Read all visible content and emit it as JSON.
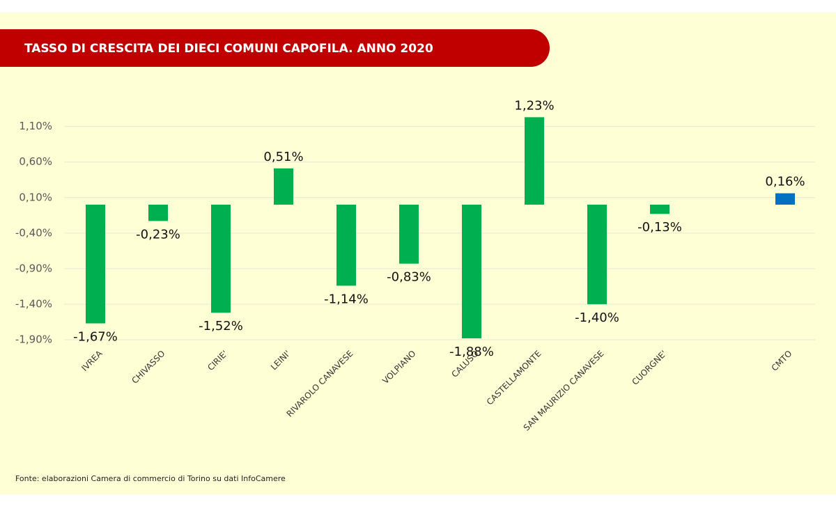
{
  "chart_data": {
    "type": "bar",
    "title": "TASSO DI CRESCITA DEI DIECI COMUNI CAPOFILA. ANNO 2020",
    "source": "Fonte: elaborazioni Camera di commercio di Torino su dati InfoCamere",
    "categories": [
      "IVREA",
      "CHIVASSO",
      "CIRIE'",
      "LEINI'",
      "RIVAROLO CANAVESE",
      "VOLPIANO",
      "CALUSO",
      "CASTELLAMONTE",
      "SAN MAURIZIO CANAVESE",
      "CUORGNE'",
      null,
      "CMTO"
    ],
    "values": [
      -1.67,
      -0.23,
      -1.52,
      0.51,
      -1.14,
      -0.83,
      -1.88,
      1.23,
      -1.4,
      -0.13,
      null,
      0.16
    ],
    "value_labels": [
      "-1,67%",
      "-0,23%",
      "-1,52%",
      "0,51%",
      "-1,14%",
      "-0,83%",
      "-1,88%",
      "1,23%",
      "-1,40%",
      "-0,13%",
      null,
      "0,16%"
    ],
    "colors": [
      "#00b050",
      "#00b050",
      "#00b050",
      "#00b050",
      "#00b050",
      "#00b050",
      "#00b050",
      "#00b050",
      "#00b050",
      "#00b050",
      null,
      "#0070c0"
    ],
    "ylim": [
      -1.9,
      1.4
    ],
    "yticks": [
      {
        "value": -1.9,
        "label": "-1,90%"
      },
      {
        "value": -1.4,
        "label": "-1,40%"
      },
      {
        "value": -0.9,
        "label": "-0,90%"
      },
      {
        "value": -0.4,
        "label": "-0,40%"
      },
      {
        "value": 0.1,
        "label": "0,10%"
      },
      {
        "value": 0.6,
        "label": "0,60%"
      },
      {
        "value": 1.1,
        "label": "1,10%"
      }
    ],
    "grid": true
  }
}
